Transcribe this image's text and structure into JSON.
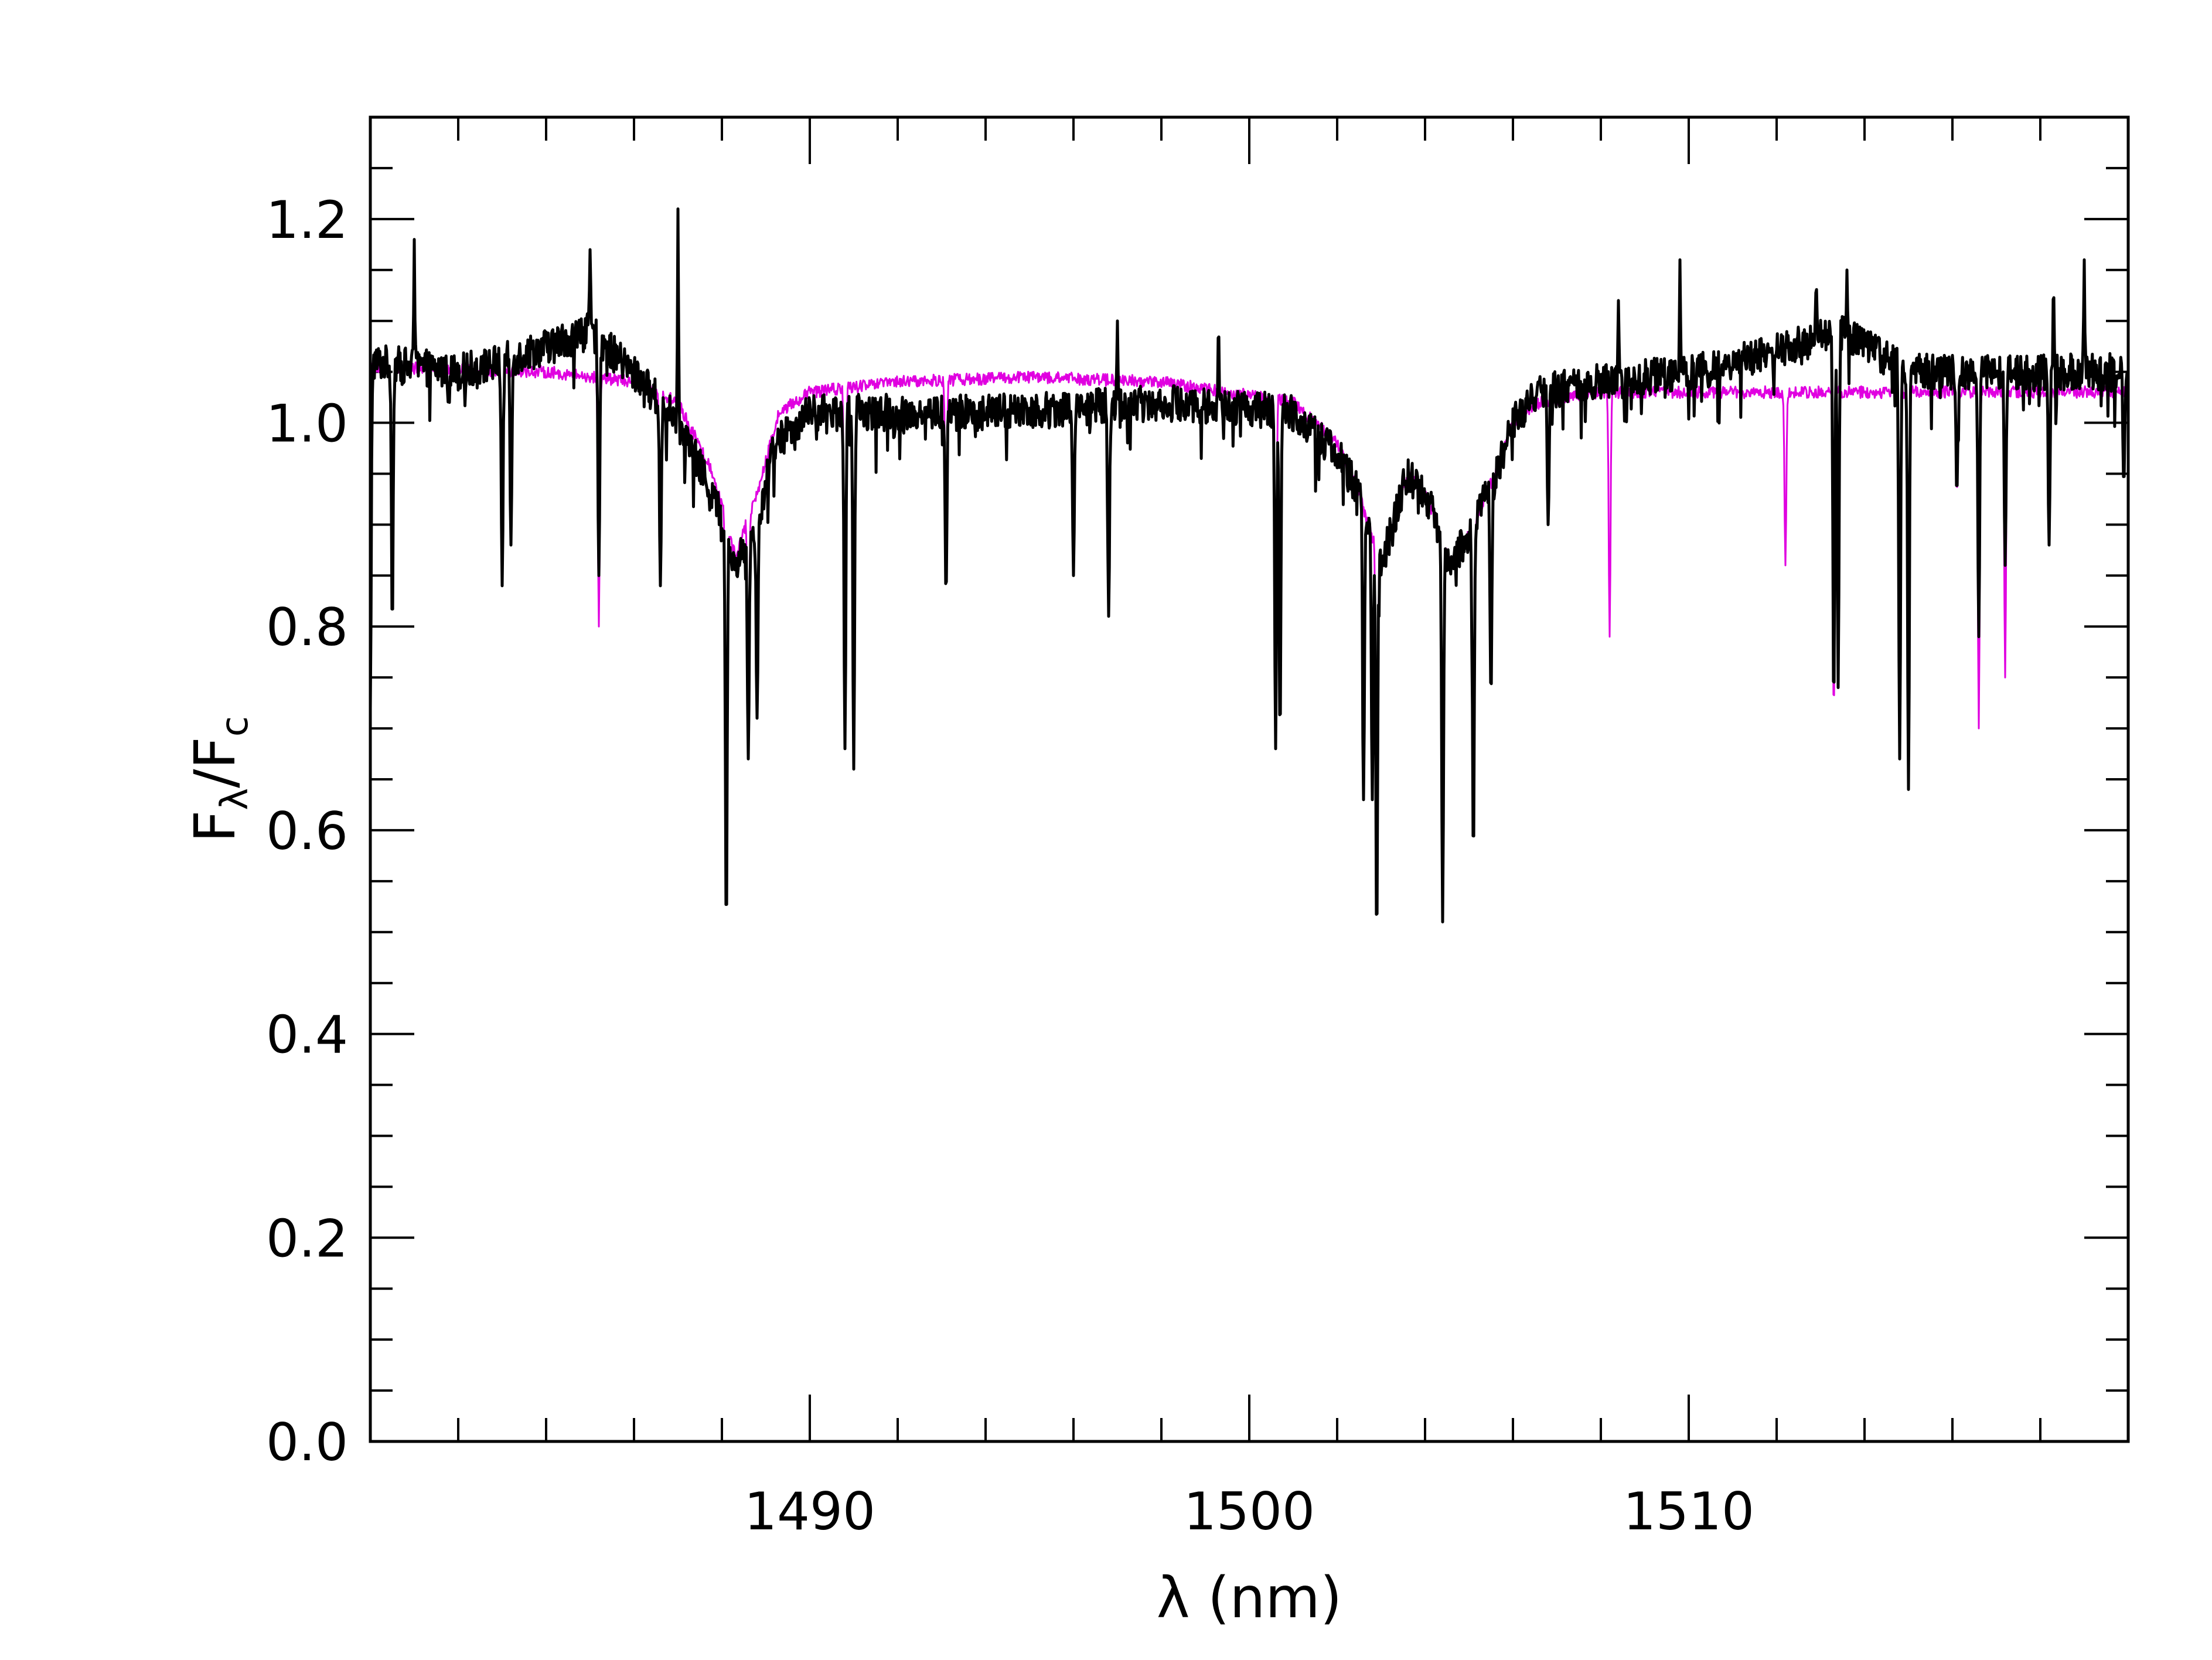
{
  "chart_data": {
    "type": "line",
    "title": "",
    "xlabel": "λ (nm)",
    "ylabel": {
      "base": "F",
      "num_sub": "λ",
      "slash": "/",
      "den": "F",
      "den_sub": "c"
    },
    "xlim": [
      1480,
      1520
    ],
    "ylim": [
      0.0,
      1.3
    ],
    "x_ticks": [
      1490,
      1500,
      1510
    ],
    "x_tick_labels": [
      "1490",
      "1500",
      "1510"
    ],
    "y_ticks": [
      0.0,
      0.2,
      0.4,
      0.6,
      0.8,
      1.0,
      1.2
    ],
    "y_tick_labels": [
      "0.0",
      "0.2",
      "0.4",
      "0.6",
      "0.8",
      "1.0",
      "1.2"
    ],
    "grid": false,
    "legend": "none",
    "series": [
      {
        "color": "#000000",
        "continuum": [
          [
            1480.0,
            1.06
          ],
          [
            1482.0,
            1.05
          ],
          [
            1483.0,
            1.06
          ],
          [
            1485.0,
            1.09
          ],
          [
            1486.2,
            1.04
          ],
          [
            1487.0,
            1.0
          ],
          [
            1487.8,
            0.93
          ],
          [
            1488.3,
            0.86
          ],
          [
            1488.8,
            0.9
          ],
          [
            1489.2,
            0.98
          ],
          [
            1490.0,
            1.01
          ],
          [
            1494.0,
            1.01
          ],
          [
            1498.0,
            1.02
          ],
          [
            1501.0,
            1.01
          ],
          [
            1502.0,
            0.97
          ],
          [
            1502.5,
            0.93
          ],
          [
            1503.0,
            0.86
          ],
          [
            1503.6,
            0.95
          ],
          [
            1504.0,
            0.93
          ],
          [
            1504.6,
            0.86
          ],
          [
            1505.1,
            0.9
          ],
          [
            1505.6,
            0.95
          ],
          [
            1506.0,
            1.0
          ],
          [
            1506.6,
            1.03
          ],
          [
            1508.0,
            1.04
          ],
          [
            1510.0,
            1.05
          ],
          [
            1512.0,
            1.07
          ],
          [
            1513.5,
            1.09
          ],
          [
            1515.0,
            1.05
          ],
          [
            1517.0,
            1.05
          ],
          [
            1520.0,
            1.05
          ]
        ],
        "lines": [
          [
            1480.0,
            0.72
          ],
          [
            1480.5,
            0.8
          ],
          [
            1483.0,
            0.84
          ],
          [
            1483.2,
            0.88
          ],
          [
            1485.2,
            0.85
          ],
          [
            1486.6,
            0.84
          ],
          [
            1488.1,
            0.5
          ],
          [
            1488.6,
            0.67
          ],
          [
            1488.8,
            0.71
          ],
          [
            1490.8,
            0.68
          ],
          [
            1491.0,
            0.66
          ],
          [
            1493.1,
            0.83
          ],
          [
            1496.0,
            0.85
          ],
          [
            1496.8,
            0.81
          ],
          [
            1500.6,
            0.68
          ],
          [
            1500.7,
            0.69
          ],
          [
            1502.6,
            0.63
          ],
          [
            1502.8,
            0.63
          ],
          [
            1502.9,
            0.49
          ],
          [
            1504.4,
            0.51
          ],
          [
            1505.1,
            0.57
          ],
          [
            1505.5,
            0.73
          ],
          [
            1506.8,
            0.9
          ],
          [
            1513.3,
            0.72
          ],
          [
            1513.4,
            0.74
          ],
          [
            1514.8,
            0.67
          ],
          [
            1515.0,
            0.64
          ],
          [
            1516.1,
            0.93
          ],
          [
            1516.6,
            0.79
          ],
          [
            1517.2,
            0.86
          ],
          [
            1518.2,
            0.88
          ],
          [
            1519.9,
            0.94
          ]
        ],
        "spikes": [
          [
            1481.0,
            1.18
          ],
          [
            1485.0,
            1.17
          ],
          [
            1487.0,
            1.21
          ],
          [
            1497.0,
            1.1
          ],
          [
            1499.3,
            1.1
          ],
          [
            1508.4,
            1.12
          ],
          [
            1509.8,
            1.16
          ],
          [
            1512.9,
            1.14
          ],
          [
            1513.6,
            1.15
          ],
          [
            1518.3,
            1.14
          ],
          [
            1519.0,
            1.16
          ]
        ],
        "noise_amplitude": 0.018,
        "stroke_width": 5
      },
      {
        "color": "#e000e0",
        "continuum": [
          [
            1480.0,
            1.055
          ],
          [
            1484.0,
            1.05
          ],
          [
            1486.0,
            1.04
          ],
          [
            1487.0,
            1.02
          ],
          [
            1487.8,
            0.95
          ],
          [
            1488.3,
            0.87
          ],
          [
            1488.8,
            0.93
          ],
          [
            1489.3,
            1.01
          ],
          [
            1490.0,
            1.03
          ],
          [
            1492.0,
            1.04
          ],
          [
            1495.0,
            1.045
          ],
          [
            1498.0,
            1.04
          ],
          [
            1501.0,
            1.02
          ],
          [
            1502.0,
            0.98
          ],
          [
            1502.5,
            0.93
          ],
          [
            1503.0,
            0.86
          ],
          [
            1503.6,
            0.95
          ],
          [
            1504.0,
            0.93
          ],
          [
            1504.6,
            0.86
          ],
          [
            1505.1,
            0.9
          ],
          [
            1505.6,
            0.95
          ],
          [
            1506.0,
            1.0
          ],
          [
            1506.6,
            1.02
          ],
          [
            1508.0,
            1.03
          ],
          [
            1510.0,
            1.03
          ],
          [
            1515.0,
            1.03
          ],
          [
            1520.0,
            1.03
          ]
        ],
        "lines": [
          [
            1480.5,
            0.82
          ],
          [
            1483.0,
            0.85
          ],
          [
            1485.2,
            0.8
          ],
          [
            1486.6,
            0.86
          ],
          [
            1488.1,
            0.56
          ],
          [
            1488.6,
            0.7
          ],
          [
            1490.8,
            0.7
          ],
          [
            1493.1,
            0.86
          ],
          [
            1500.6,
            0.76
          ],
          [
            1502.9,
            0.5
          ],
          [
            1504.4,
            0.51
          ],
          [
            1505.1,
            0.58
          ],
          [
            1508.2,
            0.79
          ],
          [
            1512.2,
            0.86
          ],
          [
            1513.3,
            0.71
          ],
          [
            1514.8,
            0.75
          ],
          [
            1515.0,
            0.74
          ],
          [
            1516.1,
            0.93
          ],
          [
            1516.6,
            0.7
          ],
          [
            1517.2,
            0.75
          ],
          [
            1518.2,
            0.88
          ]
        ],
        "spikes": [],
        "noise_amplitude": 0.006,
        "stroke_width": 3
      }
    ]
  }
}
